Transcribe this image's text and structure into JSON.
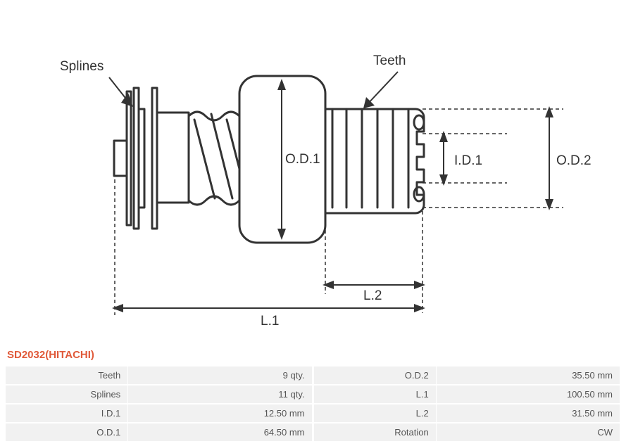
{
  "part_title": "SD2032(HITACHI)",
  "diagram": {
    "labels": {
      "splines": "Splines",
      "teeth": "Teeth",
      "od1": "O.D.1",
      "od2": "O.D.2",
      "id1": "I.D.1",
      "l1": "L.1",
      "l2": "L.2"
    },
    "colors": {
      "stroke": "#333333",
      "dash": "#333333",
      "background": "#ffffff",
      "title": "#e05a3a",
      "table_bg": "#f1f1f1",
      "text": "#555555"
    },
    "stroke_width_main": 3,
    "stroke_width_dim": 1.5,
    "font_size_label": 19
  },
  "specs_left": [
    {
      "label": "Teeth",
      "value": "9 qty."
    },
    {
      "label": "Splines",
      "value": "11 qty."
    },
    {
      "label": "I.D.1",
      "value": "12.50 mm"
    },
    {
      "label": "O.D.1",
      "value": "64.50 mm"
    }
  ],
  "specs_right": [
    {
      "label": "O.D.2",
      "value": "35.50 mm"
    },
    {
      "label": "L.1",
      "value": "100.50 mm"
    },
    {
      "label": "L.2",
      "value": "31.50 mm"
    },
    {
      "label": "Rotation",
      "value": "CW"
    }
  ]
}
